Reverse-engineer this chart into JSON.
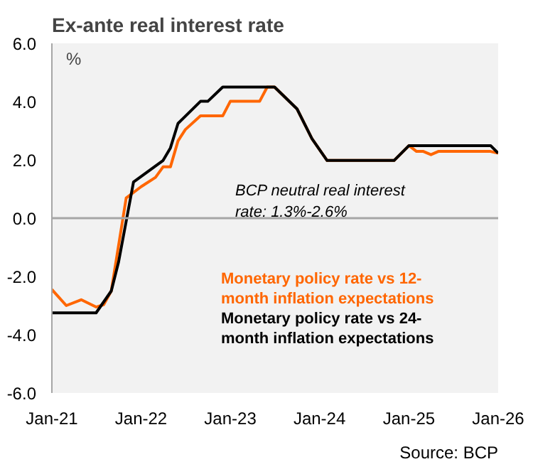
{
  "chart_data": {
    "type": "line",
    "title": "Ex-ante real interest rate",
    "ylabel": "%",
    "xlim": [
      "2021-01",
      "2026-01"
    ],
    "xticks": [
      {
        "value": "2021-01",
        "label": "Jan-21"
      },
      {
        "value": "2022-01",
        "label": "Jan-22"
      },
      {
        "value": "2023-01",
        "label": "Jan-23"
      },
      {
        "value": "2024-01",
        "label": "Jan-24"
      },
      {
        "value": "2025-01",
        "label": "Jan-25"
      },
      {
        "value": "2026-01",
        "label": "Jan-26"
      }
    ],
    "ylim": [
      -6,
      6
    ],
    "yticks": [
      {
        "value": -6,
        "label": "-6.0"
      },
      {
        "value": -4,
        "label": "-4.0"
      },
      {
        "value": -2,
        "label": "-2.0"
      },
      {
        "value": 0,
        "label": "0.0"
      },
      {
        "value": 2,
        "label": "2.0"
      },
      {
        "value": 4,
        "label": "4.0"
      },
      {
        "value": 6,
        "label": "6.0"
      }
    ],
    "grid": false,
    "legend": "bottom right",
    "marker": "none",
    "line_style": "solid",
    "ref_lines": [
      {
        "axis": "y",
        "value": 0,
        "color": "#a6a6a6"
      }
    ],
    "annotations": [
      "BCP neutral real interest rate: 1.3%-2.6%",
      "Source: BCP"
    ],
    "series": [
      {
        "name": "Monetary policy rate vs 12-month inflation expectations",
        "color": "#ff6600",
        "x": [
          "2021-01",
          "2021-03",
          "2021-05",
          "2021-07",
          "2021-08",
          "2021-09",
          "2021-11",
          "2022-01",
          "2022-03",
          "2022-04",
          "2022-05",
          "2022-06",
          "2022-07",
          "2022-09",
          "2022-12",
          "2023-01",
          "2023-05",
          "2023-06",
          "2023-07",
          "2023-10",
          "2023-12",
          "2024-02",
          "2024-11",
          "2025-01",
          "2025-02",
          "2025-03",
          "2025-04",
          "2025-05",
          "2025-06",
          "2025-12",
          "2026-01"
        ],
        "values": [
          -2.45,
          -3.0,
          -2.8,
          -3.05,
          -2.97,
          -2.5,
          0.69,
          1.08,
          1.4,
          1.76,
          1.76,
          2.65,
          3.04,
          3.51,
          3.51,
          4.01,
          4.01,
          4.5,
          4.5,
          3.75,
          2.73,
          1.98,
          1.98,
          2.49,
          2.29,
          2.29,
          2.18,
          2.29,
          2.29,
          2.29,
          2.23
        ]
      },
      {
        "name": "Monetary policy rate vs 24-month inflation expectations",
        "color": "#000000",
        "x": [
          "2021-01",
          "2021-07",
          "2021-09",
          "2021-10",
          "2021-12",
          "2022-03",
          "2022-04",
          "2022-05",
          "2022-06",
          "2022-09",
          "2022-10",
          "2022-12",
          "2023-07",
          "2023-10",
          "2023-12",
          "2024-02",
          "2024-11",
          "2025-01",
          "2025-12",
          "2026-01"
        ],
        "values": [
          -3.25,
          -3.25,
          -2.5,
          -1.5,
          1.24,
          1.79,
          1.98,
          2.41,
          3.25,
          4.01,
          4.01,
          4.5,
          4.5,
          3.75,
          2.73,
          1.98,
          1.98,
          2.49,
          2.49,
          2.23
        ]
      }
    ]
  }
}
